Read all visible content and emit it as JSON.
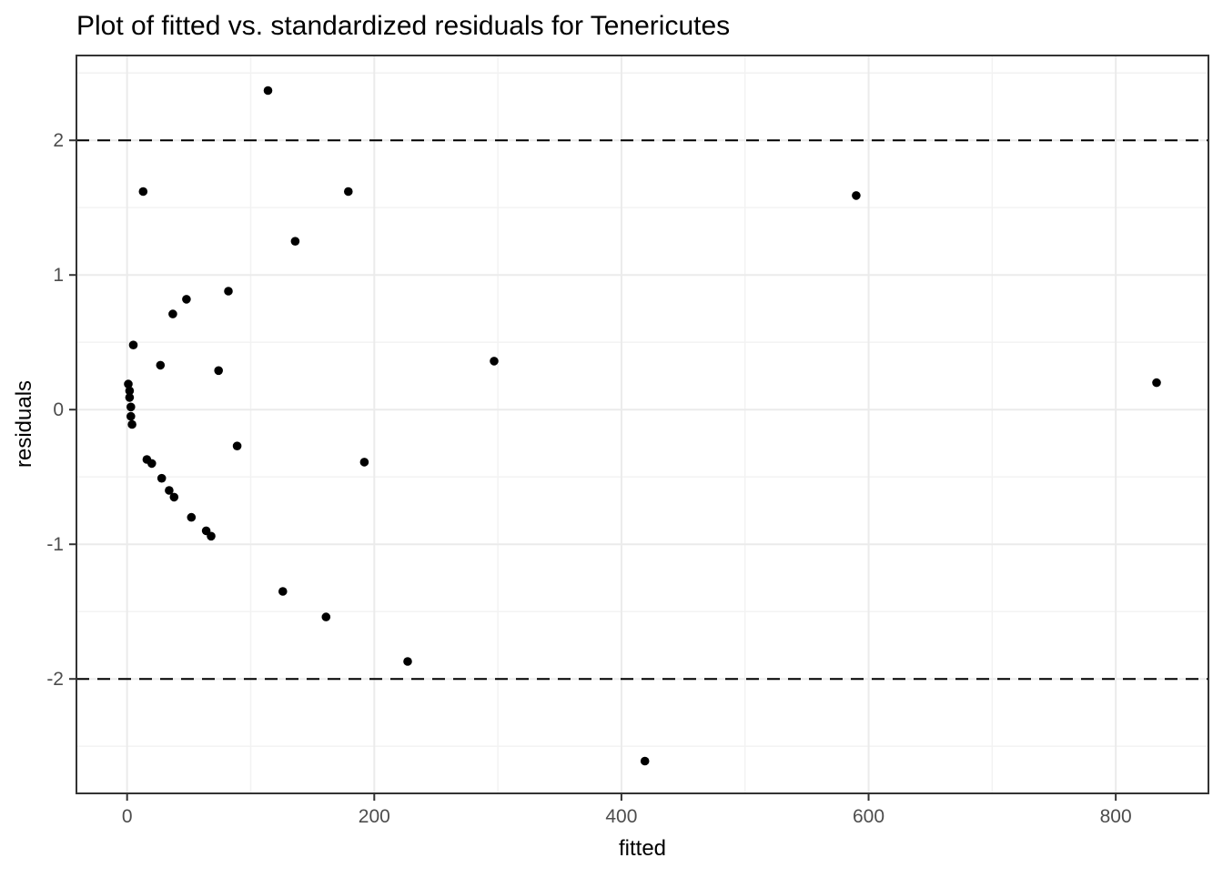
{
  "chart_data": {
    "type": "scatter",
    "title": "Plot of fitted vs. standardized residuals for Tenericutes",
    "xlabel": "fitted",
    "ylabel": "residuals",
    "x_ticks": [
      0,
      200,
      400,
      600,
      800
    ],
    "x_minor_ticks": [
      100,
      300,
      500,
      700
    ],
    "y_ticks": [
      2,
      1,
      0,
      -1,
      -2
    ],
    "y_minor_ticks": [
      2.5,
      1.5,
      0.5,
      -0.5,
      -1.5,
      -2.5
    ],
    "xlim": [
      -41,
      875
    ],
    "ylim": [
      -2.85,
      2.63
    ],
    "grid": "major+minor",
    "legend": false,
    "reference_lines_y": [
      2,
      -2
    ],
    "point_style": {
      "color": "#000000",
      "radius_px": 4.8
    },
    "colors": {
      "background": "#FFFFFF",
      "grid_major": "#EBEBEB",
      "grid_minor": "#F2F2F2",
      "panel_border": "#333333",
      "tick": "#333333",
      "tick_label": "#4D4D4D",
      "text": "#000000",
      "reference_line": "#000000"
    },
    "points": [
      [
        114,
        2.37
      ],
      [
        13,
        1.62
      ],
      [
        179,
        1.62
      ],
      [
        590,
        1.59
      ],
      [
        136,
        1.25
      ],
      [
        82,
        0.88
      ],
      [
        48,
        0.82
      ],
      [
        37,
        0.71
      ],
      [
        5,
        0.48
      ],
      [
        297,
        0.36
      ],
      [
        27,
        0.33
      ],
      [
        74,
        0.29
      ],
      [
        833,
        0.2
      ],
      [
        1,
        0.19
      ],
      [
        2,
        0.14
      ],
      [
        2,
        0.09
      ],
      [
        3,
        0.02
      ],
      [
        3,
        -0.05
      ],
      [
        4,
        -0.11
      ],
      [
        89,
        -0.27
      ],
      [
        16,
        -0.37
      ],
      [
        20,
        -0.4
      ],
      [
        28,
        -0.51
      ],
      [
        34,
        -0.6
      ],
      [
        38,
        -0.65
      ],
      [
        52,
        -0.8
      ],
      [
        64,
        -0.9
      ],
      [
        68,
        -0.94
      ],
      [
        192,
        -0.39
      ],
      [
        126,
        -1.35
      ],
      [
        161,
        -1.54
      ],
      [
        227,
        -1.87
      ],
      [
        419,
        -2.61
      ]
    ]
  }
}
